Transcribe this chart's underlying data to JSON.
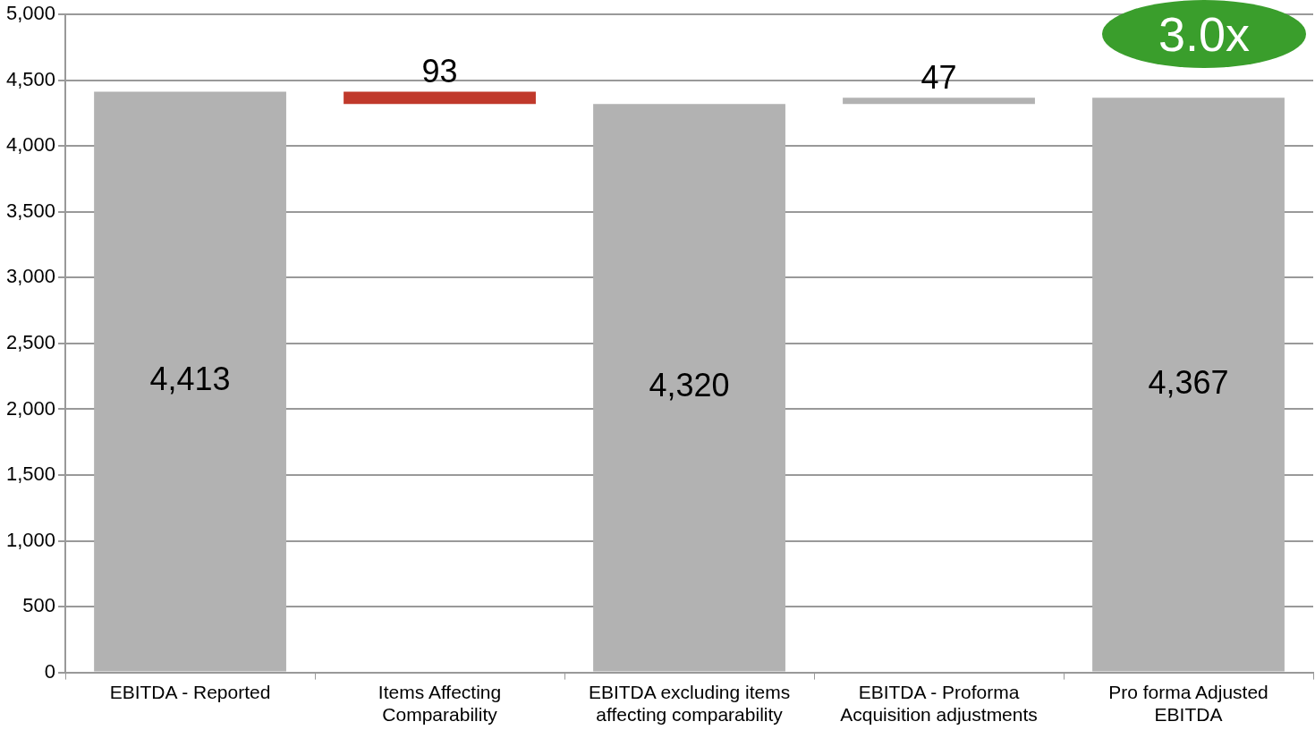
{
  "chart_data": {
    "type": "bar",
    "categories": [
      "EBITDA - Reported",
      "Items Affecting Comparability",
      "EBITDA excluding items affecting comparability",
      "EBITDA - Proforma Acquisition adjustments",
      "Pro forma Adjusted EBITDA"
    ],
    "values": [
      4413,
      93,
      4320,
      47,
      4367
    ],
    "base": [
      0,
      4320,
      0,
      4320,
      0
    ],
    "colors": [
      "#b2b2b2",
      "#c0392b",
      "#b2b2b2",
      "#b2b2b2",
      "#b2b2b2"
    ],
    "ylim": [
      0,
      5000
    ],
    "yticks": [
      0,
      500,
      {
        "value": 1000,
        "label": "1,000"
      },
      {
        "value": 1500,
        "label": "1,500"
      },
      {
        "value": 2000,
        "label": "2,000"
      },
      {
        "value": 2500,
        "label": "2,500"
      },
      {
        "value": 3000,
        "label": "3,000"
      },
      {
        "value": 3500,
        "label": "3,500"
      },
      {
        "value": 4000,
        "label": "4,000"
      },
      {
        "value": 4500,
        "label": "4,500"
      },
      {
        "value": 5000,
        "label": "5,000"
      }
    ],
    "grid": "y",
    "legend": false,
    "value_labels": [
      "4,413",
      "93",
      "4,320",
      "47",
      "4,367"
    ],
    "annotations": [
      "3.0x"
    ]
  }
}
